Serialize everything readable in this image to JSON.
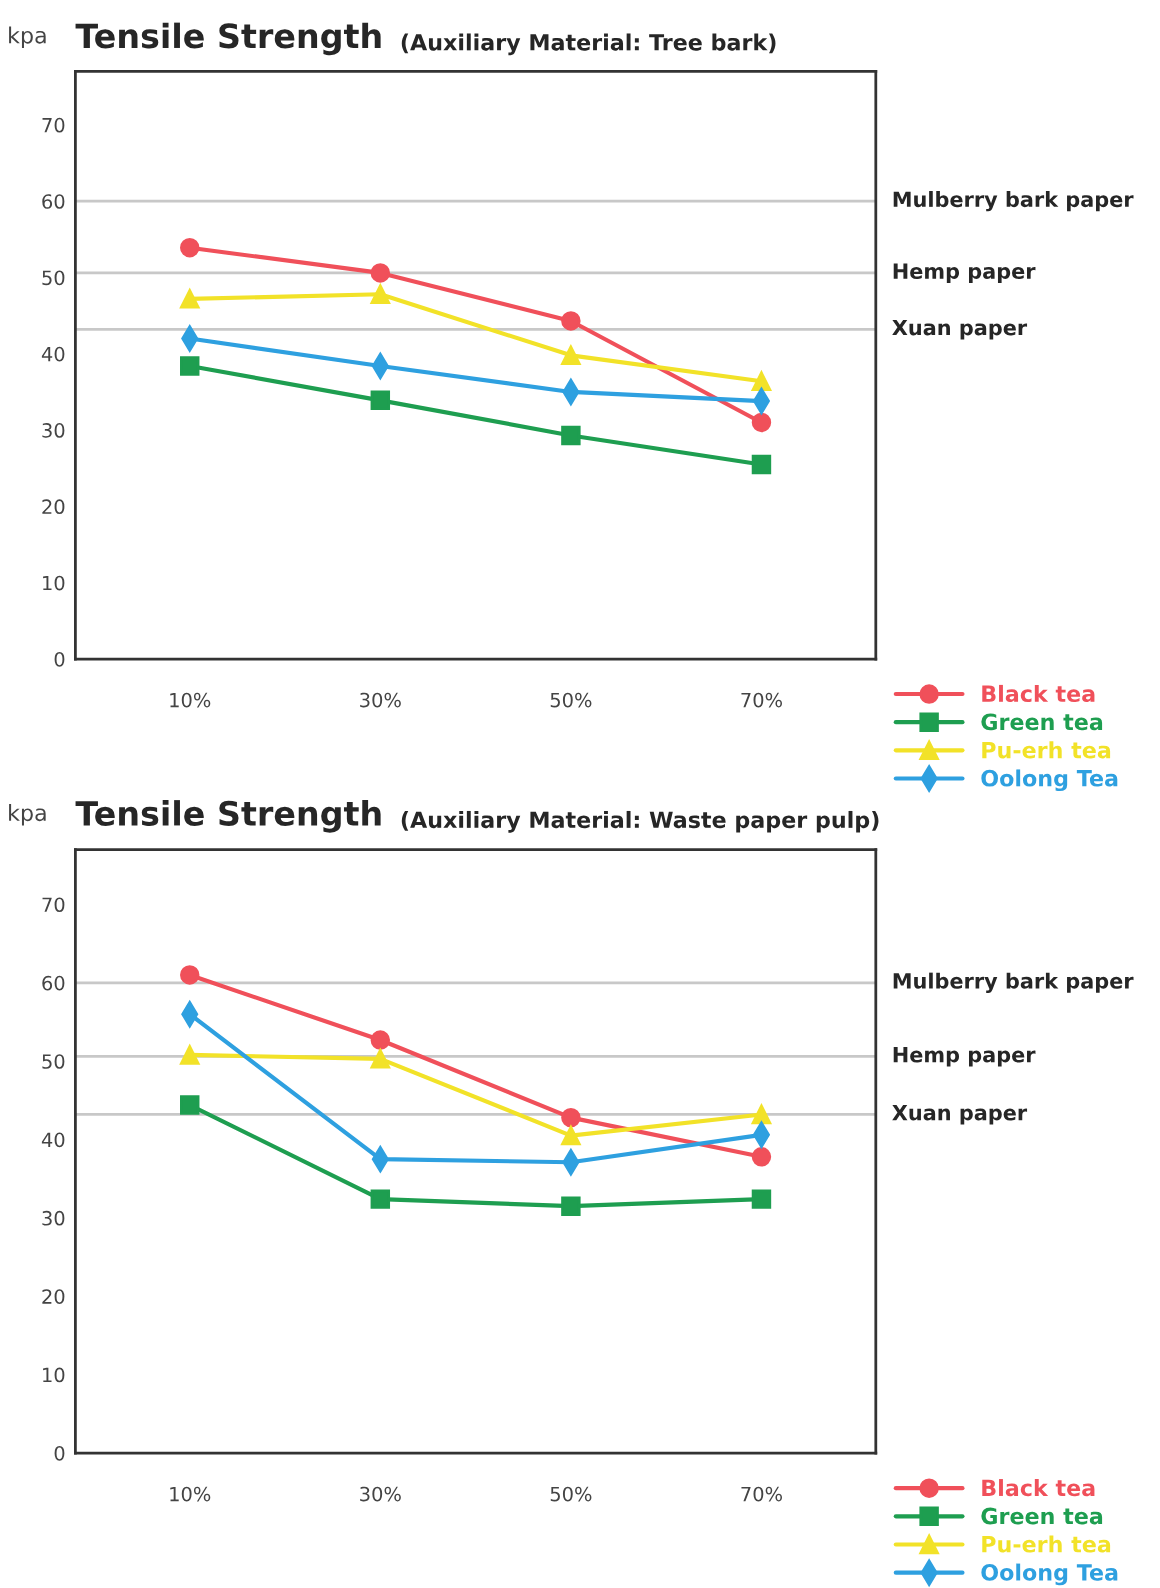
{
  "chart_data": [
    {
      "type": "line",
      "title": "Tensile Strength",
      "subtitle": "(Auxiliary Material: Tree bark)",
      "ylabel": "kpa",
      "categories": [
        "10%",
        "30%",
        "50%",
        "70%"
      ],
      "ylim": [
        0,
        77
      ],
      "yticks": [
        0,
        10,
        20,
        30,
        40,
        50,
        60,
        70
      ],
      "grid": false,
      "legend": "bottom right",
      "series": [
        {
          "name": "Black tea",
          "color": "#f0505a",
          "marker": "circle",
          "values": [
            53.9,
            50.6,
            44.3,
            31.0
          ]
        },
        {
          "name": "Green tea",
          "color": "#1e9e50",
          "marker": "square",
          "values": [
            38.4,
            33.9,
            29.3,
            25.5
          ]
        },
        {
          "name": "Pu-erh tea",
          "color": "#f2e228",
          "marker": "triangle",
          "values": [
            47.2,
            47.8,
            39.8,
            36.4
          ]
        },
        {
          "name": "Oolong Tea",
          "color": "#2ea0e0",
          "marker": "diamond",
          "values": [
            42.0,
            38.4,
            35.0,
            33.8
          ]
        }
      ],
      "ref_lines": [
        {
          "axis": "y",
          "value": 60,
          "label": "Mulberry bark paper",
          "color": "#c8c8c8"
        },
        {
          "axis": "y",
          "value": 50.6,
          "label": "Hemp paper",
          "color": "#c8c8c8"
        },
        {
          "axis": "y",
          "value": 43.2,
          "label": "Xuan paper",
          "color": "#c8c8c8"
        }
      ]
    },
    {
      "type": "line",
      "title": "Tensile Strength",
      "subtitle": "(Auxiliary Material: Waste paper pulp)",
      "ylabel": "kpa",
      "categories": [
        "10%",
        "30%",
        "50%",
        "70%"
      ],
      "ylim": [
        0,
        77
      ],
      "yticks": [
        0,
        10,
        20,
        30,
        40,
        50,
        60,
        70
      ],
      "grid": false,
      "legend": "bottom right",
      "series": [
        {
          "name": "Black tea",
          "color": "#f0505a",
          "marker": "circle",
          "values": [
            61.0,
            52.7,
            42.8,
            37.8
          ]
        },
        {
          "name": "Green tea",
          "color": "#1e9e50",
          "marker": "square",
          "values": [
            44.4,
            32.4,
            31.5,
            32.4
          ]
        },
        {
          "name": "Pu-erh tea",
          "color": "#f2e228",
          "marker": "triangle",
          "values": [
            50.8,
            50.3,
            40.5,
            43.2
          ]
        },
        {
          "name": "Oolong Tea",
          "color": "#2ea0e0",
          "marker": "diamond",
          "values": [
            56.0,
            37.5,
            37.1,
            40.6
          ]
        }
      ],
      "ref_lines": [
        {
          "axis": "y",
          "value": 60,
          "label": "Mulberry bark paper",
          "color": "#c8c8c8"
        },
        {
          "axis": "y",
          "value": 50.6,
          "label": "Hemp paper",
          "color": "#c8c8c8"
        },
        {
          "axis": "y",
          "value": 43.2,
          "label": "Xuan paper",
          "color": "#c8c8c8"
        }
      ]
    }
  ]
}
